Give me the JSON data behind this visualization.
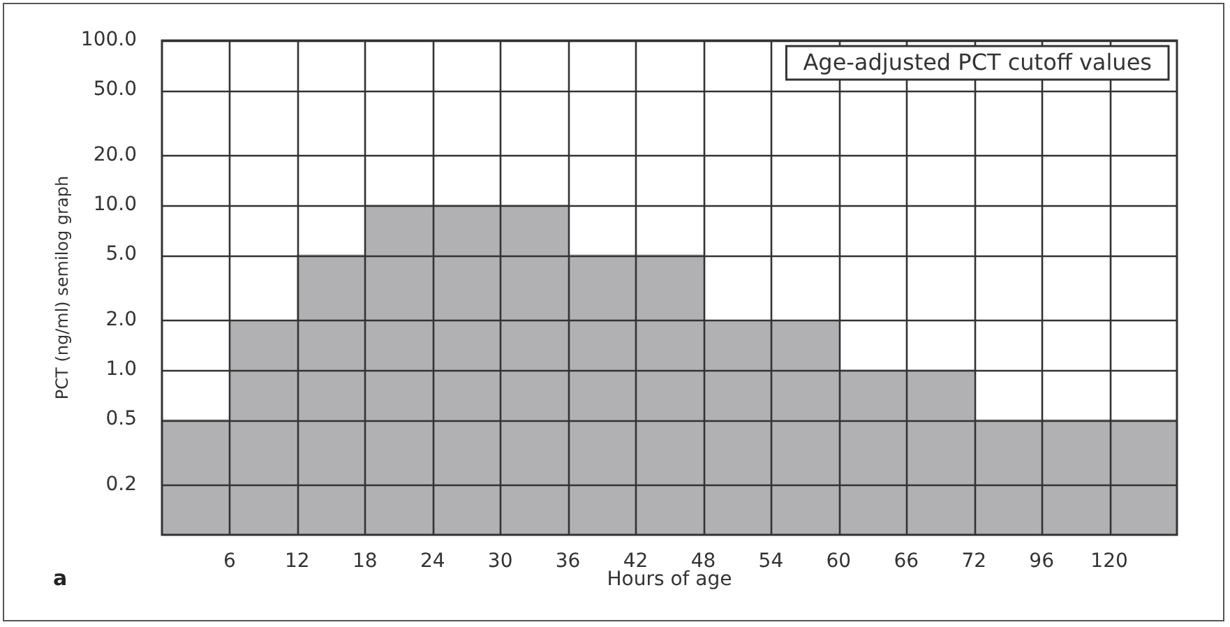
{
  "chart_data": {
    "type": "bar",
    "title": "Age-adjusted PCT cutoff values",
    "xlabel": "Hours of age",
    "ylabel": "PCT (ng/ml) semilog graph",
    "categories": [
      null,
      "6",
      "12",
      "18",
      "24",
      "30",
      "36",
      "42",
      "48",
      "54",
      "60",
      "66",
      "72",
      "96",
      "120"
    ],
    "values": [
      0.5,
      2,
      5,
      10,
      10,
      10,
      5,
      5,
      2,
      2,
      1,
      1,
      0.5,
      0.5,
      0.5
    ],
    "color": "#b1b1b3",
    "log": true,
    "ylim": [
      0.1,
      100
    ],
    "yticks": [
      0.2,
      0.5,
      {
        "value": 1,
        "label": "1.0"
      },
      {
        "value": 2,
        "label": "2.0"
      },
      {
        "value": 5,
        "label": "5.0"
      },
      {
        "value": 10,
        "label": "10.0"
      },
      {
        "value": 20,
        "label": "20.0"
      },
      {
        "value": 50,
        "label": "50.0"
      },
      {
        "value": 100,
        "label": "100.0"
      }
    ],
    "grid": true,
    "annotations": [
      "a"
    ]
  }
}
